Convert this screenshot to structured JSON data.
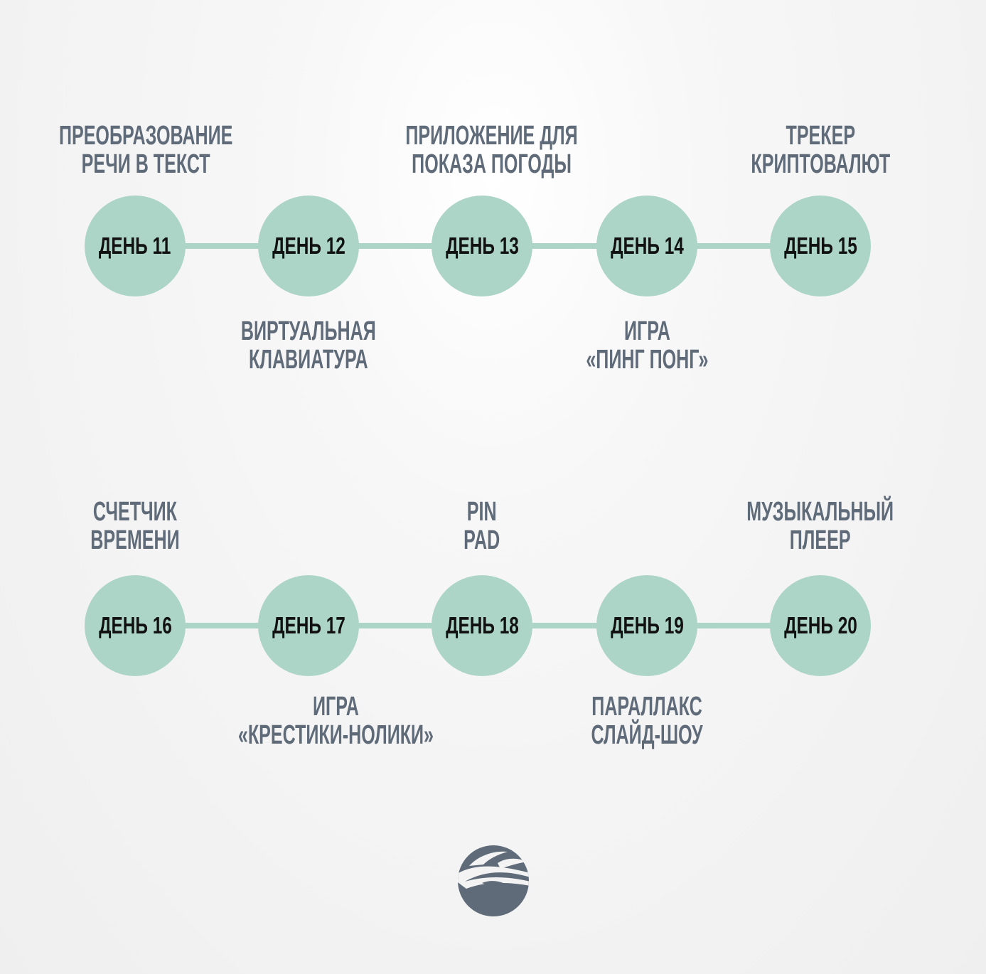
{
  "timelines": [
    {
      "days": [
        {
          "label": "ДЕНЬ 11"
        },
        {
          "label": "ДЕНЬ 12"
        },
        {
          "label": "ДЕНЬ 13"
        },
        {
          "label": "ДЕНЬ 14"
        },
        {
          "label": "ДЕНЬ 15"
        }
      ],
      "top_captions": [
        {
          "line1": "ПРЕОБРАЗОВАНИЕ",
          "line2": "РЕЧИ В ТЕКСТ"
        },
        {
          "line1": "ПРИЛОЖЕНИЕ ДЛЯ",
          "line2": "ПОКАЗА ПОГОДЫ"
        },
        {
          "line1": "ТРЕКЕР",
          "line2": "КРИПТОВАЛЮТ"
        }
      ],
      "bottom_captions": [
        {
          "line1": "ВИРТУАЛЬНАЯ",
          "line2": "КЛАВИАТУРА"
        },
        {
          "line1": "ИГРА",
          "line2": "«ПИНГ ПОНГ»"
        }
      ]
    },
    {
      "days": [
        {
          "label": "ДЕНЬ 16"
        },
        {
          "label": "ДЕНЬ 17"
        },
        {
          "label": "ДЕНЬ 18"
        },
        {
          "label": "ДЕНЬ 19"
        },
        {
          "label": "ДЕНЬ 20"
        }
      ],
      "top_captions": [
        {
          "line1": "СЧЕТЧИК",
          "line2": "ВРЕМЕНИ"
        },
        {
          "line1": "PIN",
          "line2": "PAD"
        },
        {
          "line1": "МУЗЫКАЛЬНЫЙ",
          "line2": "ПЛЕЕР"
        }
      ],
      "bottom_captions": [
        {
          "line1": "ИГРА",
          "line2": "«КРЕСТИКИ-НОЛИКИ»"
        },
        {
          "line1": "ПАРАЛЛАКС",
          "line2": "СЛАЙД-ШОУ"
        }
      ]
    }
  ],
  "colors": {
    "node_fill": "#acd5c8",
    "caption_text": "#5f6b79",
    "node_text": "#111111",
    "logo": "#5f6b79"
  }
}
